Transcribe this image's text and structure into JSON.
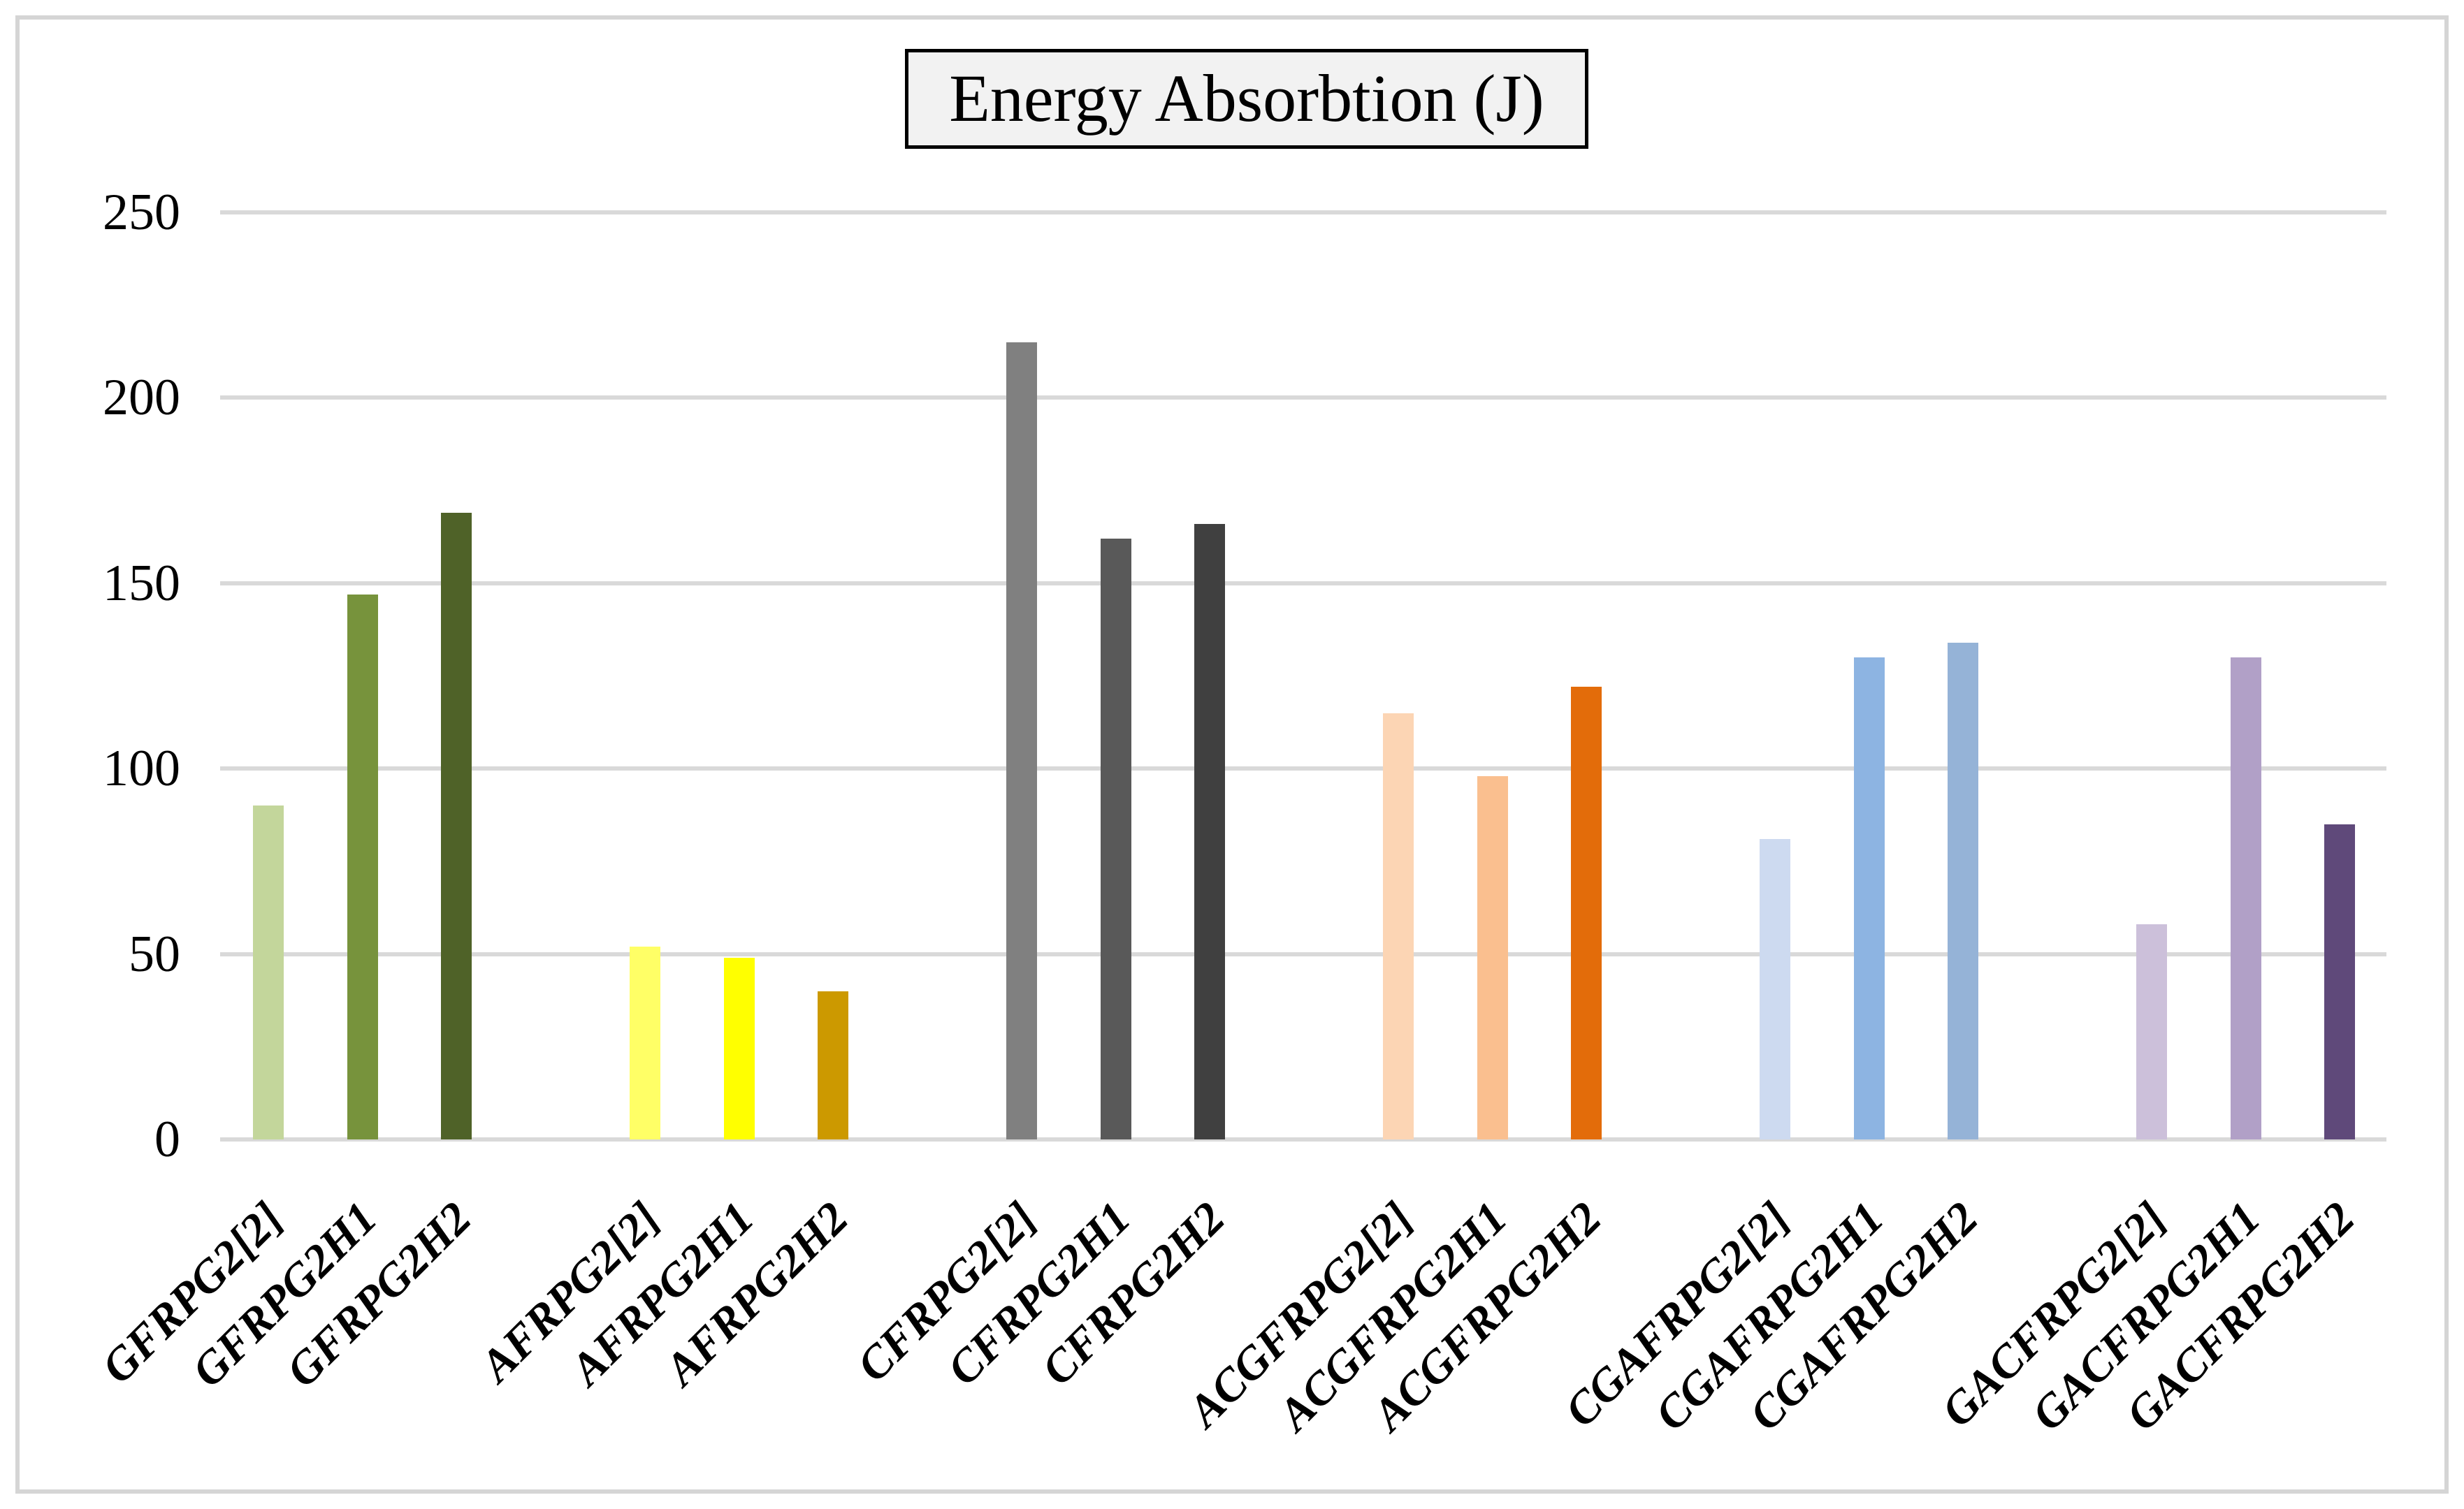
{
  "title": "Energy Absorbtion (J)",
  "chart_data": {
    "type": "bar",
    "title": "Energy Absorbtion (J)",
    "categories": [
      "GFRPG2[2]",
      "GFRPG2H1",
      "GFRPG2H2",
      "AFRPG2[2]",
      "AFRPG2H1",
      "AFRPG2H2",
      "CFRPG2[2]",
      "CFRPG2H1",
      "CFRPG2H2",
      "ACGFRPG2[2]",
      "ACGFRPG2H1",
      "ACGFRPG2H2",
      "CGAFRPG2[2]",
      "CGAFRPG2H1",
      "CGAFRPG2H2",
      "GACFRPG2[2]",
      "GACFRPG2H1",
      "GACFRPG2H2"
    ],
    "values": [
      90,
      147,
      169,
      52,
      49,
      40,
      215,
      162,
      166,
      115,
      98,
      122,
      81,
      130,
      134,
      58,
      130,
      85
    ],
    "bar_colors": [
      "#c3d69b",
      "#77933c",
      "#4f6228",
      "#ffff66",
      "#ffff00",
      "#cc9900",
      "#808080",
      "#595959",
      "#404040",
      "#fcd5b4",
      "#fabf8f",
      "#e36c0a",
      "#cddaf0",
      "#8db4e2",
      "#95b3d7",
      "#ccc0da",
      "#b1a0c7",
      "#5f497a"
    ],
    "group_size": 3,
    "xlabel": "",
    "ylabel": "",
    "ylim": [
      0,
      250
    ],
    "yticks": [
      0,
      50,
      100,
      150,
      200,
      250
    ],
    "grid": true,
    "gridline_color": "#d9d9d9",
    "frame_color": "#d5d5d5",
    "title_box_fill": "#f2f2f2",
    "title_box_border": "#000000",
    "legend": "none"
  }
}
